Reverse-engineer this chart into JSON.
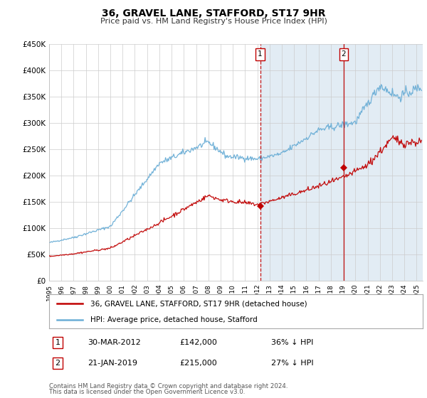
{
  "title": "36, GRAVEL LANE, STAFFORD, ST17 9HR",
  "subtitle": "Price paid vs. HM Land Registry's House Price Index (HPI)",
  "ylim": [
    0,
    450000
  ],
  "xlim_start": 1995.0,
  "xlim_end": 2025.5,
  "yticks": [
    0,
    50000,
    100000,
    150000,
    200000,
    250000,
    300000,
    350000,
    400000,
    450000
  ],
  "ytick_labels": [
    "£0",
    "£50K",
    "£100K",
    "£150K",
    "£200K",
    "£250K",
    "£300K",
    "£350K",
    "£400K",
    "£450K"
  ],
  "xtick_years": [
    1995,
    1996,
    1997,
    1998,
    1999,
    2000,
    2001,
    2002,
    2003,
    2004,
    2005,
    2006,
    2007,
    2008,
    2009,
    2010,
    2011,
    2012,
    2013,
    2014,
    2015,
    2016,
    2017,
    2018,
    2019,
    2020,
    2021,
    2022,
    2023,
    2024,
    2025
  ],
  "hpi_color": "#6baed6",
  "price_color": "#c00000",
  "sale1_date": 2012.23,
  "sale1_price": 142000,
  "sale1_label": "1",
  "sale2_date": 2019.05,
  "sale2_price": 215000,
  "sale2_label": "2",
  "shaded_region_color": "#d6e4f0",
  "shaded_alpha": 0.7,
  "grid_color": "#cccccc",
  "background_color": "#ffffff",
  "legend_entries": [
    "36, GRAVEL LANE, STAFFORD, ST17 9HR (detached house)",
    "HPI: Average price, detached house, Stafford"
  ],
  "table_rows": [
    [
      "1",
      "30-MAR-2012",
      "£142,000",
      "36% ↓ HPI"
    ],
    [
      "2",
      "21-JAN-2019",
      "£215,000",
      "27% ↓ HPI"
    ]
  ],
  "footnote1": "Contains HM Land Registry data © Crown copyright and database right 2024.",
  "footnote2": "This data is licensed under the Open Government Licence v3.0."
}
